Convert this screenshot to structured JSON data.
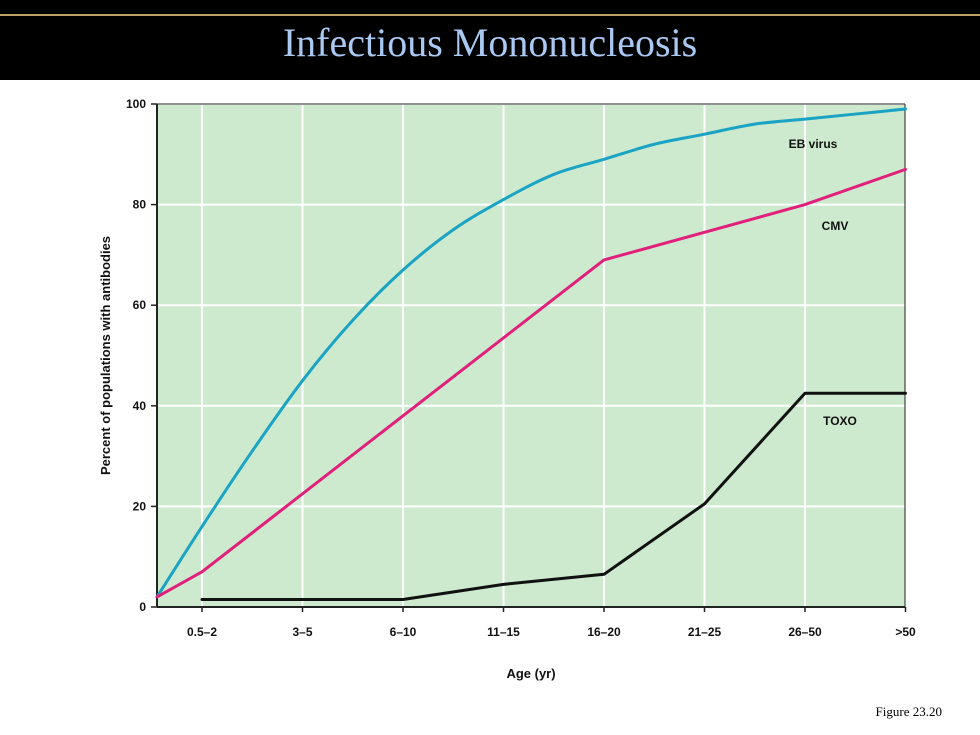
{
  "slide": {
    "title": "Infectious Mononucleosis",
    "caption": "Figure 23.20"
  },
  "colors": {
    "background": "#ffffff",
    "title_bar": "#000000",
    "title_text": "#a9c8f2",
    "title_rule": "#b9a36a",
    "plot_area": "#cdeacf",
    "grid": "#ffffff",
    "axis": "#222222"
  },
  "chart_data": {
    "type": "line",
    "title": "",
    "xlabel": "Age (yr)",
    "ylabel": "Percent of populations with antibodies",
    "categories": [
      "0.5–2",
      "3–5",
      "6–10",
      "11–15",
      "16–20",
      "21–25",
      "26–50",
      ">50"
    ],
    "ylim": [
      0,
      100
    ],
    "yticks": [
      0,
      20,
      40,
      60,
      80,
      100
    ],
    "grid": true,
    "series": [
      {
        "name": "EB virus",
        "color": "#1aa3c2",
        "x": [
          0,
          0.5,
          1,
          1.5,
          2,
          2.5,
          3,
          3.5,
          4,
          4.5,
          5,
          5.5,
          6,
          6.5,
          7,
          7.5
        ],
        "values": [
          2,
          16,
          31,
          45,
          57,
          67,
          75,
          81,
          86,
          89,
          92,
          94,
          96,
          97,
          98,
          99
        ]
      },
      {
        "name": "CMV",
        "color": "#e0207a",
        "x": [
          0,
          0.5,
          2.5,
          4.5,
          6.5,
          7.5
        ],
        "values": [
          2,
          7,
          38,
          69,
          80,
          87
        ]
      },
      {
        "name": "TOXO",
        "color": "#111111",
        "x": [
          0.5,
          2.5,
          3.5,
          4.5,
          5.5,
          6.5,
          7.5
        ],
        "values": [
          1.5,
          1.5,
          4.5,
          6.5,
          20.5,
          42.5,
          42.5
        ]
      }
    ]
  }
}
